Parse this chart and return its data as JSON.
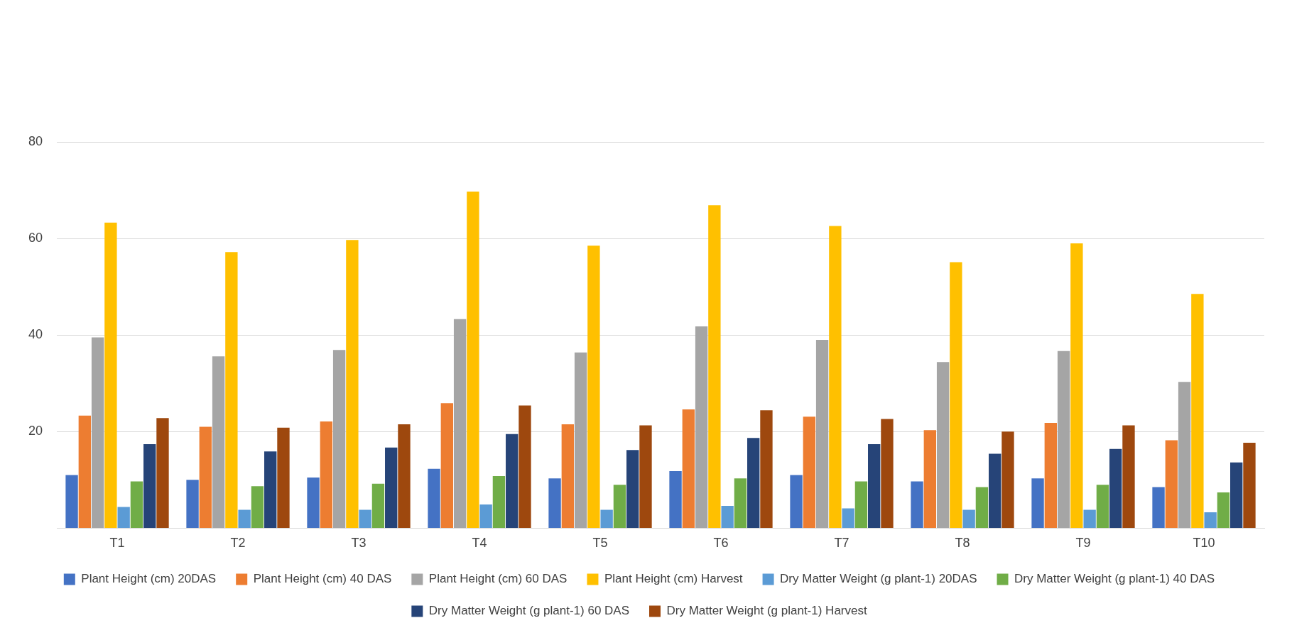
{
  "chart_data": {
    "type": "bar",
    "categories": [
      "T1",
      "T2",
      "T3",
      "T4",
      "T5",
      "T6",
      "T7",
      "T8",
      "T9",
      "T10"
    ],
    "series": [
      {
        "name": "Plant Height (cm) 20DAS",
        "color": "#4472c4",
        "values": [
          11.0,
          10.0,
          10.5,
          12.3,
          10.3,
          11.8,
          11.0,
          9.7,
          10.3,
          8.5
        ]
      },
      {
        "name": "Plant Height (cm) 40 DAS",
        "color": "#ed7d31",
        "values": [
          23.3,
          21.0,
          22.1,
          25.9,
          21.5,
          24.6,
          23.1,
          20.3,
          21.8,
          18.2
        ]
      },
      {
        "name": "Plant Height (cm) 60 DAS",
        "color": "#a5a5a5",
        "values": [
          39.5,
          35.6,
          36.9,
          43.3,
          36.4,
          41.8,
          39.0,
          34.4,
          36.7,
          30.3
        ]
      },
      {
        "name": "Plant Height (cm) Harvest",
        "color": "#ffc000",
        "values": [
          63.3,
          57.2,
          59.7,
          69.7,
          58.5,
          66.9,
          62.6,
          55.1,
          59.0,
          48.5
        ]
      },
      {
        "name": "Dry Matter Weight (g plant-1) 20DAS",
        "color": "#5b9bd5",
        "values": [
          4.4,
          3.8,
          3.8,
          4.9,
          3.8,
          4.6,
          4.1,
          3.8,
          3.8,
          3.3
        ]
      },
      {
        "name": "Dry Matter Weight (g plant-1) 40 DAS",
        "color": "#70ad47",
        "values": [
          9.7,
          8.7,
          9.2,
          10.8,
          9.0,
          10.3,
          9.7,
          8.5,
          9.0,
          7.4
        ]
      },
      {
        "name": "Dry Matter Weight (g plant-1) 60 DAS",
        "color": "#264478",
        "values": [
          17.4,
          15.9,
          16.7,
          19.5,
          16.2,
          18.7,
          17.4,
          15.4,
          16.4,
          13.6
        ]
      },
      {
        "name": "Dry Matter Weight (g plant-1) Harvest",
        "color": "#9e480e",
        "values": [
          22.8,
          20.8,
          21.5,
          25.4,
          21.3,
          24.4,
          22.6,
          20.0,
          21.3,
          17.7
        ]
      }
    ],
    "ylim": [
      0,
      80
    ],
    "yticks": [
      {
        "value": 0,
        "label": null
      },
      20,
      40,
      60,
      80
    ],
    "grid": "y",
    "legend": "bottom"
  }
}
